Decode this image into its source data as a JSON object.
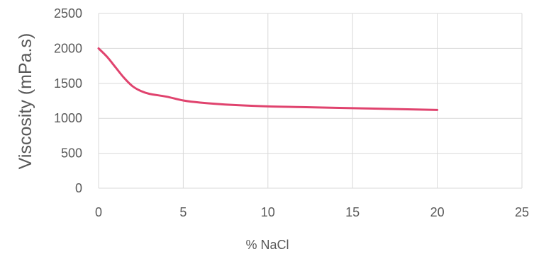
{
  "chart_data": {
    "type": "line",
    "title": "",
    "xlabel": "% NaCl",
    "ylabel": "Viscosity (mPa.s)",
    "xlim": [
      0,
      25
    ],
    "ylim": [
      0,
      2500
    ],
    "x_ticks": [
      0,
      5,
      10,
      15,
      20,
      25
    ],
    "y_ticks": [
      0,
      500,
      1000,
      1500,
      2000,
      2500
    ],
    "grid": true,
    "legend": "none",
    "series": [
      {
        "color": "#E0436E",
        "x": [
          0,
          0.5,
          1,
          1.5,
          2,
          2.5,
          3,
          4,
          5,
          6,
          8,
          10,
          12,
          15,
          18,
          20
        ],
        "y": [
          2000,
          1880,
          1730,
          1580,
          1460,
          1390,
          1350,
          1310,
          1255,
          1225,
          1190,
          1170,
          1160,
          1145,
          1130,
          1120
        ]
      }
    ]
  }
}
